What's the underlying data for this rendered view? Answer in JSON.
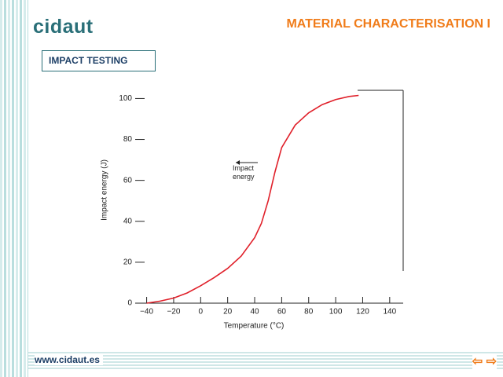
{
  "header": {
    "logo": "cidaut",
    "title": "MATERIAL CHARACTERISATION I"
  },
  "section": "IMPACT TESTING",
  "footer": {
    "url": "www.cidaut.es"
  },
  "chart_data": {
    "type": "line",
    "x_label": "Temperature (°C)",
    "y_label": "Impact energy (J)",
    "annotation": "Impact energy",
    "x": [
      -40,
      -30,
      -20,
      -10,
      0,
      10,
      20,
      30,
      40,
      45,
      50,
      55,
      60,
      70,
      80,
      90,
      100,
      110,
      117
    ],
    "series": [
      {
        "name": "Impact energy",
        "color": "#e0202a",
        "values": [
          0,
          1,
          2.5,
          5,
          8.5,
          12.5,
          17,
          23,
          32,
          39,
          50,
          64,
          76,
          87,
          93,
          97,
          99.5,
          101,
          101.5
        ]
      }
    ],
    "xlim": [
      -45,
      150
    ],
    "ylim": [
      0,
      104
    ],
    "xticks": [
      {
        "value": -40,
        "label": "−40"
      },
      {
        "value": -20,
        "label": "−20"
      },
      0,
      20,
      40,
      60,
      80,
      100,
      120,
      140
    ],
    "yticks": [
      0,
      20,
      40,
      60,
      80,
      100
    ],
    "grid": false
  }
}
